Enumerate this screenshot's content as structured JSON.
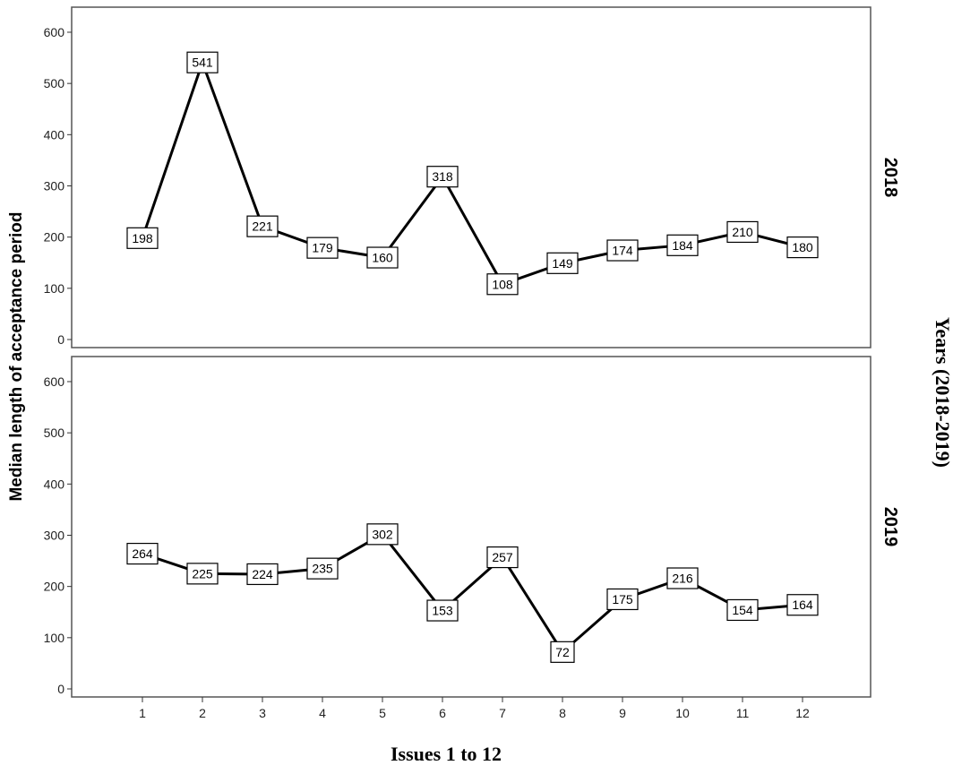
{
  "chart_data": {
    "type": "line",
    "x": [
      1,
      2,
      3,
      4,
      5,
      6,
      7,
      8,
      9,
      10,
      11,
      12
    ],
    "x_tick_labels": [
      "1",
      "2",
      "3",
      "4",
      "5",
      "6",
      "7",
      "8",
      "9",
      "10",
      "11",
      "12"
    ],
    "y_ticks": [
      0,
      100,
      200,
      300,
      400,
      500,
      600
    ],
    "ylim": [
      0,
      600
    ],
    "xlabel": "Issues 1 to 12",
    "ylabel": "Median length of acceptance period",
    "panel_group_label": "Years (2018-2019)",
    "grid": false,
    "legend": "none",
    "panels": [
      {
        "label": "2018",
        "values": [
          198,
          541,
          221,
          179,
          160,
          318,
          108,
          149,
          174,
          184,
          210,
          180
        ],
        "data_labels": [
          "198",
          "541",
          "221",
          "179",
          "160",
          "318",
          "108",
          "149",
          "174",
          "184",
          "210",
          "180"
        ]
      },
      {
        "label": "2019",
        "values": [
          264,
          225,
          224,
          235,
          302,
          153,
          257,
          72,
          175,
          216,
          154,
          164
        ],
        "data_labels": [
          "264",
          "225",
          "224",
          "235",
          "302",
          "153",
          "257",
          "72",
          "175",
          "216",
          "154",
          "164"
        ]
      }
    ],
    "colors": {
      "line": "#000000",
      "frame": "#555555",
      "label_box_fill": "#ffffff"
    }
  }
}
